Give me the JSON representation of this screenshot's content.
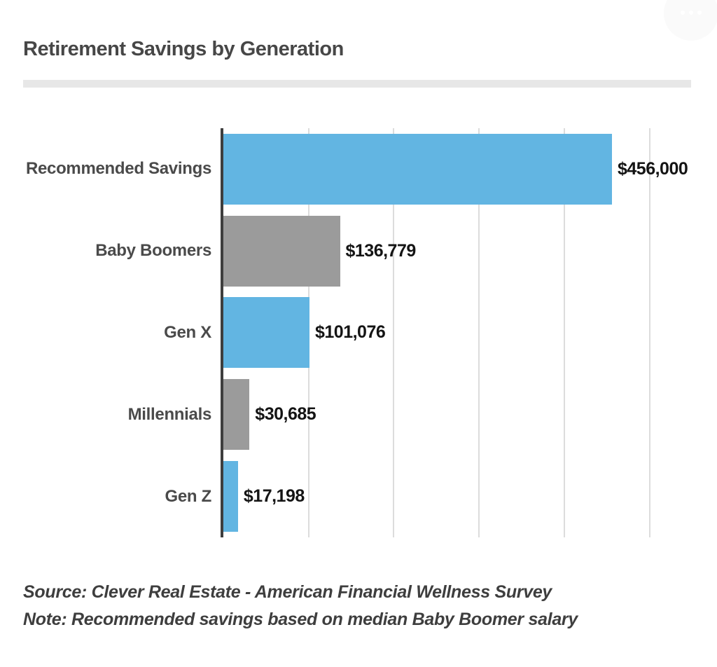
{
  "page": {
    "title": "Retirement Savings by Generation",
    "source_line": "Source: Clever Real Estate - American Financial Wellness Survey",
    "note_line": "Note: Recommended savings based on median Baby Boomer salary"
  },
  "menu": {
    "icon": "ellipsis-menu-icon"
  },
  "colors": {
    "blue_bar": "#62b5e2",
    "gray_bar": "#9b9b9b",
    "axis": "#3e3e3e",
    "gridline": "#dcdcdc",
    "divider": "#e7e7e7",
    "title_text": "#474747",
    "category_text": "#4a4a4a",
    "value_text": "#141414",
    "footer_text": "#3e3e3e"
  },
  "chart_data": {
    "type": "bar",
    "orientation": "horizontal",
    "title": "Retirement Savings by Generation",
    "categories": [
      "Recommended Savings",
      "Baby Boomers",
      "Gen X",
      "Millennials",
      "Gen Z"
    ],
    "values": [
      456000,
      136779,
      101076,
      30685,
      17198
    ],
    "value_labels": [
      "$456,000",
      "$136,779",
      "$101,076",
      "$30,685",
      "$17,198"
    ],
    "bar_colors": [
      "#62b5e2",
      "#9b9b9b",
      "#62b5e2",
      "#9b9b9b",
      "#62b5e2"
    ],
    "xlim": [
      0,
      580000
    ],
    "gridlines": [
      100000,
      200000,
      300000,
      400000,
      500000
    ],
    "grid": true,
    "legend": false,
    "x_tick_labels_shown": false,
    "source": "Source: Clever Real Estate - American Financial Wellness Survey",
    "note": "Note: Recommended savings based on median Baby Boomer salary"
  }
}
